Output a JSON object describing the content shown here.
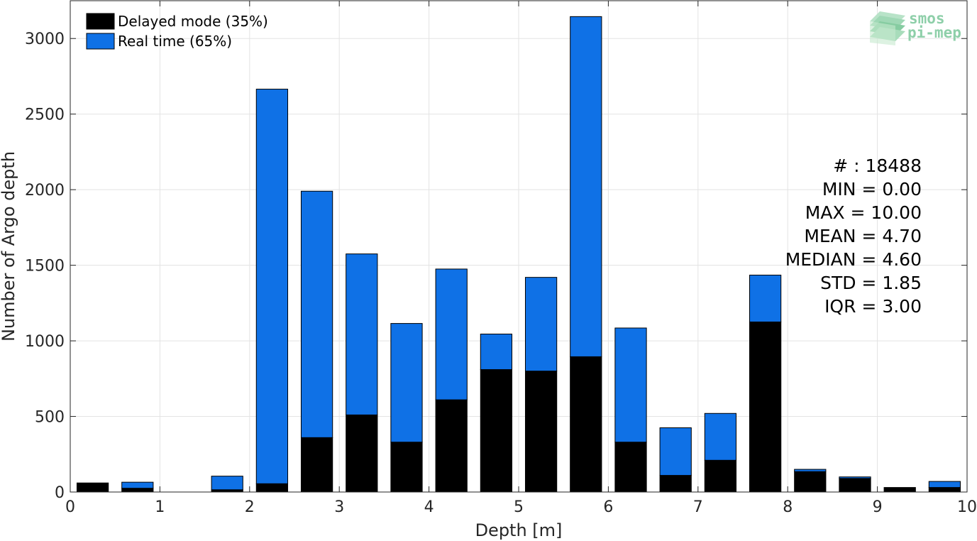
{
  "chart_data": {
    "type": "bar",
    "stacked": true,
    "xlabel": "Depth [m]",
    "ylabel": "Number of Argo depth",
    "xlim": [
      0,
      10
    ],
    "ylim": [
      0,
      3250
    ],
    "x_ticks": [
      0,
      1,
      2,
      3,
      4,
      5,
      6,
      7,
      8,
      9,
      10
    ],
    "y_ticks": [
      0,
      500,
      1000,
      1500,
      2000,
      2500,
      3000
    ],
    "grid": true,
    "legend_position": "top-left",
    "bin_width": 0.35,
    "x": [
      0.25,
      0.75,
      1.25,
      1.75,
      2.25,
      2.75,
      3.25,
      3.75,
      4.25,
      4.75,
      5.25,
      5.75,
      6.25,
      6.75,
      7.25,
      7.75,
      8.25,
      8.75,
      9.25,
      9.75
    ],
    "series": [
      {
        "name": "Delayed mode (35%)",
        "color": "#000000",
        "values": [
          60,
          25,
          0,
          15,
          55,
          360,
          510,
          330,
          610,
          810,
          800,
          895,
          330,
          110,
          210,
          1125,
          135,
          90,
          30,
          30
        ]
      },
      {
        "name": "Real time (65%)",
        "color": "#0f71e6",
        "values": [
          0,
          40,
          0,
          90,
          2610,
          1630,
          1065,
          785,
          865,
          235,
          620,
          2250,
          755,
          315,
          310,
          310,
          15,
          10,
          0,
          40
        ]
      }
    ],
    "stats": [
      "# : 18488",
      "MIN = 0.00",
      "MAX =  10.00",
      "MEAN = 4.70",
      "MEDIAN = 4.60",
      "STD = 1.85",
      "IQR = 3.00"
    ]
  },
  "logo": {
    "line1": "smos",
    "line2": "pi-mep",
    "color": "#8ecfa9"
  }
}
